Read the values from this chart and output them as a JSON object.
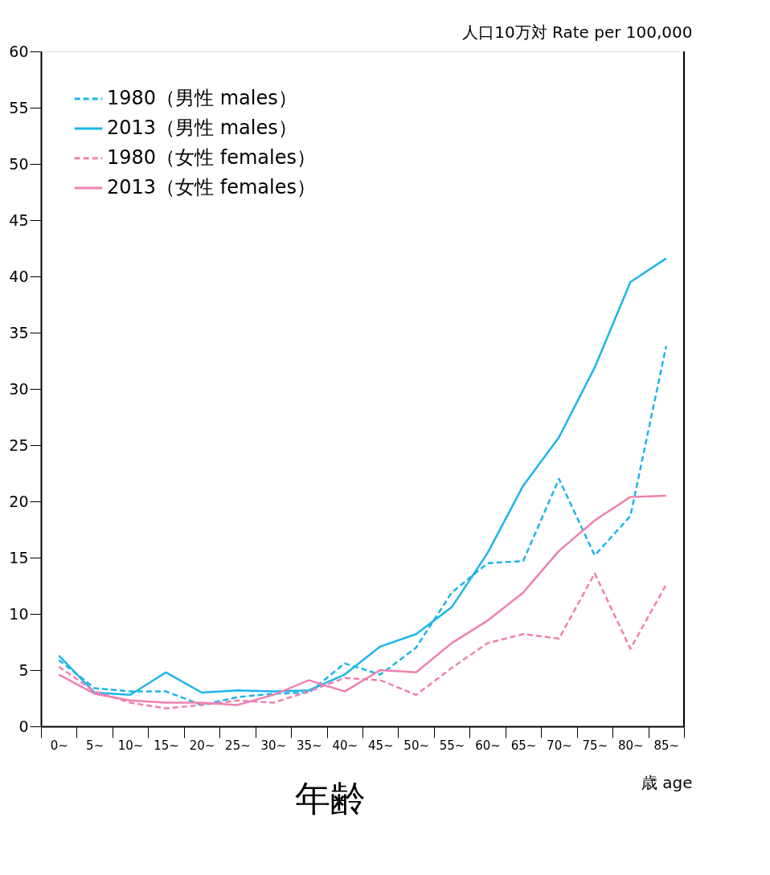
{
  "chart_data": {
    "type": "line",
    "ylabel": "人口10万対  Rate per 100,000",
    "xlabel": "歳 age",
    "annotations": [
      "年齢"
    ],
    "categories": [
      "0~",
      "5~",
      "10~",
      "15~",
      "20~",
      "25~",
      "30~",
      "35~",
      "40~",
      "45~",
      "50~",
      "55~",
      "60~",
      "65~",
      "70~",
      "75~",
      "80~",
      "85~"
    ],
    "series": [
      {
        "name": "1980（男性 males）",
        "color": "#1cb5e8",
        "line_style": "dashed",
        "values": [
          5.9,
          3.4,
          3.1,
          3.1,
          1.9,
          2.6,
          2.9,
          3.0,
          5.6,
          4.6,
          7.0,
          11.9,
          14.5,
          14.7,
          22.0,
          15.2,
          18.7,
          33.8
        ]
      },
      {
        "name": "2013（男性 males）",
        "color": "#1cb5e8",
        "line_style": "solid",
        "values": [
          6.3,
          3.0,
          2.8,
          4.8,
          3.0,
          3.2,
          3.1,
          3.2,
          4.6,
          7.1,
          8.2,
          10.6,
          15.4,
          21.4,
          25.7,
          31.9,
          39.5,
          41.6
        ]
      },
      {
        "name": "1980（女性 females）",
        "color": "#f080b0",
        "line_style": "dashed",
        "values": [
          5.3,
          3.1,
          2.1,
          1.6,
          1.9,
          2.3,
          2.1,
          3.1,
          4.3,
          4.1,
          2.8,
          5.2,
          7.4,
          8.2,
          7.8,
          13.6,
          6.9,
          12.6
        ]
      },
      {
        "name": "2013（女性 females）",
        "color": "#f080b0",
        "line_style": "solid",
        "values": [
          4.6,
          2.9,
          2.3,
          2.1,
          2.1,
          1.9,
          2.8,
          4.1,
          3.1,
          5.0,
          4.8,
          7.4,
          9.4,
          11.9,
          15.6,
          18.3,
          20.4,
          20.5
        ]
      }
    ],
    "ylim": [
      0,
      60
    ],
    "yticks": [
      0,
      5,
      10,
      15,
      20,
      25,
      30,
      35,
      40,
      45,
      50,
      55,
      60
    ],
    "grid": false,
    "legend": "top left",
    "marker": "none"
  }
}
